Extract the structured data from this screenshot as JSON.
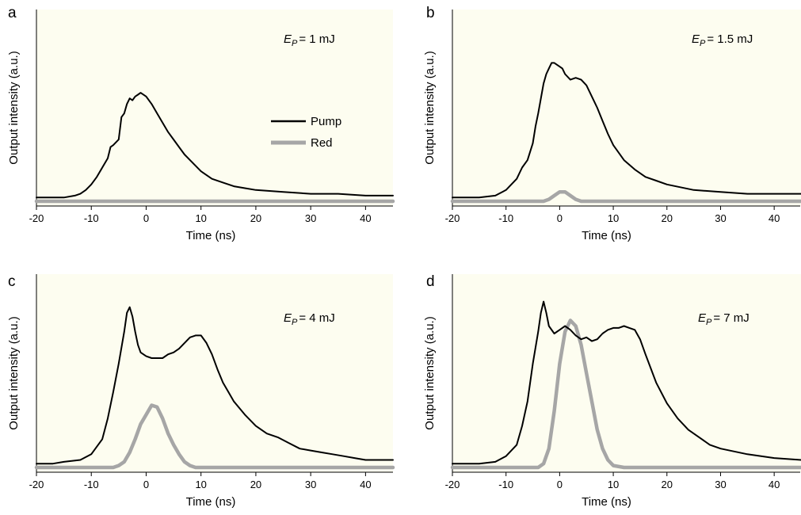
{
  "colors": {
    "plot_background": "#fdfdf0",
    "pump": "#000000",
    "red": "#a6a6a6"
  },
  "chart_data": [
    {
      "type": "line",
      "panel": "a",
      "xlabel": "Time (ns)",
      "ylabel": "Output intensity (a.u.)",
      "xlim": [
        -20,
        45
      ],
      "xticks": [
        -20,
        -10,
        0,
        10,
        20,
        30,
        40
      ],
      "ylim": [
        0,
        1
      ],
      "annotation": {
        "symbol": "E",
        "subscript": "P",
        "value": "= 1 mJ"
      },
      "legend": {
        "position": "center-right",
        "entries": [
          "Pump",
          "Red"
        ]
      },
      "series": [
        {
          "name": "Pump",
          "x": [
            -20,
            -15,
            -13,
            -12,
            -11,
            -10,
            -9,
            -8,
            -7,
            -6.5,
            -6,
            -5,
            -4.5,
            -4,
            -3.5,
            -3,
            -2.5,
            -2,
            -1.5,
            -1,
            0,
            1,
            2,
            3,
            4,
            5,
            6,
            7,
            8,
            9,
            10,
            12,
            14,
            16,
            18,
            20,
            25,
            30,
            35,
            40,
            45
          ],
          "y": [
            0.02,
            0.02,
            0.03,
            0.04,
            0.06,
            0.09,
            0.13,
            0.18,
            0.23,
            0.29,
            0.3,
            0.33,
            0.45,
            0.47,
            0.52,
            0.55,
            0.54,
            0.56,
            0.57,
            0.58,
            0.56,
            0.52,
            0.47,
            0.42,
            0.37,
            0.33,
            0.29,
            0.25,
            0.22,
            0.19,
            0.16,
            0.12,
            0.1,
            0.08,
            0.07,
            0.06,
            0.05,
            0.04,
            0.04,
            0.03,
            0.03
          ]
        },
        {
          "name": "Red",
          "x": [
            -20,
            45
          ],
          "y": [
            0.0,
            0.0
          ]
        }
      ]
    },
    {
      "type": "line",
      "panel": "b",
      "xlabel": "Time (ns)",
      "ylabel": "Output intensity (a.u.)",
      "xlim": [
        -20,
        45
      ],
      "xticks": [
        -20,
        -10,
        0,
        10,
        20,
        30,
        40
      ],
      "ylim": [
        0,
        1
      ],
      "annotation": {
        "symbol": "E",
        "subscript": "P",
        "value": "= 1.5 mJ"
      },
      "series": [
        {
          "name": "Pump",
          "x": [
            -20,
            -15,
            -12,
            -10,
            -8,
            -7,
            -6,
            -5,
            -4.5,
            -4,
            -3.5,
            -3,
            -2.5,
            -2,
            -1.5,
            -1,
            0,
            0.5,
            1,
            2,
            3,
            4,
            5,
            6,
            7,
            8,
            9,
            10,
            12,
            14,
            16,
            18,
            20,
            25,
            30,
            35,
            40,
            45
          ],
          "y": [
            0.02,
            0.02,
            0.03,
            0.06,
            0.12,
            0.18,
            0.22,
            0.31,
            0.4,
            0.47,
            0.55,
            0.63,
            0.68,
            0.71,
            0.74,
            0.74,
            0.72,
            0.71,
            0.68,
            0.65,
            0.66,
            0.65,
            0.62,
            0.56,
            0.5,
            0.43,
            0.36,
            0.3,
            0.22,
            0.17,
            0.13,
            0.11,
            0.09,
            0.06,
            0.05,
            0.04,
            0.04,
            0.04
          ]
        },
        {
          "name": "Red",
          "x": [
            -20,
            -3,
            -2,
            -1,
            0,
            1,
            2,
            3,
            4,
            45
          ],
          "y": [
            0.0,
            0.0,
            0.01,
            0.03,
            0.05,
            0.05,
            0.03,
            0.01,
            0.0,
            0.0
          ]
        }
      ]
    },
    {
      "type": "line",
      "panel": "c",
      "xlabel": "Time (ns)",
      "ylabel": "Output intensity (a.u.)",
      "xlim": [
        -20,
        45
      ],
      "xticks": [
        -20,
        -10,
        0,
        10,
        20,
        30,
        40
      ],
      "ylim": [
        0,
        1
      ],
      "annotation": {
        "symbol": "E",
        "subscript": "P",
        "value": "= 4 mJ"
      },
      "series": [
        {
          "name": "Pump",
          "x": [
            -20,
            -17,
            -15,
            -12,
            -10,
            -8,
            -7,
            -6,
            -5,
            -4,
            -3.5,
            -3,
            -2.5,
            -2,
            -1.5,
            -1,
            0,
            1,
            2,
            3,
            4,
            5,
            6,
            7,
            8,
            9,
            10,
            11,
            12,
            13,
            14,
            15,
            16,
            18,
            20,
            22,
            24,
            26,
            28,
            30,
            32,
            34,
            36,
            38,
            40,
            42,
            45
          ],
          "y": [
            0.02,
            0.02,
            0.03,
            0.04,
            0.07,
            0.15,
            0.26,
            0.4,
            0.55,
            0.72,
            0.82,
            0.85,
            0.8,
            0.72,
            0.65,
            0.61,
            0.59,
            0.58,
            0.58,
            0.58,
            0.6,
            0.61,
            0.63,
            0.66,
            0.69,
            0.7,
            0.7,
            0.66,
            0.6,
            0.52,
            0.45,
            0.4,
            0.35,
            0.28,
            0.22,
            0.18,
            0.16,
            0.13,
            0.1,
            0.09,
            0.08,
            0.07,
            0.06,
            0.05,
            0.04,
            0.04,
            0.04
          ]
        },
        {
          "name": "Red",
          "x": [
            -20,
            -6,
            -5,
            -4,
            -3,
            -2,
            -1,
            0,
            1,
            2,
            3,
            4,
            5,
            6,
            7,
            8,
            9,
            45
          ],
          "y": [
            0.0,
            0.0,
            0.01,
            0.03,
            0.08,
            0.15,
            0.23,
            0.28,
            0.33,
            0.32,
            0.26,
            0.18,
            0.12,
            0.07,
            0.03,
            0.01,
            0.0,
            0.0
          ]
        }
      ]
    },
    {
      "type": "line",
      "panel": "d",
      "xlabel": "Time (ns)",
      "ylabel": "Output intensity (a.u.)",
      "xlim": [
        -20,
        45
      ],
      "xticks": [
        -20,
        -10,
        0,
        10,
        20,
        30,
        40
      ],
      "ylim": [
        0,
        1
      ],
      "annotation": {
        "symbol": "E",
        "subscript": "P",
        "value": "= 7 mJ"
      },
      "series": [
        {
          "name": "Pump",
          "x": [
            -20,
            -15,
            -12,
            -10,
            -8,
            -7,
            -6,
            -5,
            -4,
            -3.5,
            -3,
            -2.5,
            -2,
            -1,
            0,
            1,
            2,
            3,
            4,
            5,
            6,
            7,
            8,
            9,
            10,
            11,
            12,
            13,
            14,
            15,
            16,
            18,
            20,
            22,
            24,
            26,
            28,
            30,
            35,
            40,
            45
          ],
          "y": [
            0.02,
            0.02,
            0.03,
            0.06,
            0.12,
            0.22,
            0.35,
            0.55,
            0.72,
            0.82,
            0.88,
            0.82,
            0.75,
            0.71,
            0.73,
            0.75,
            0.73,
            0.7,
            0.68,
            0.69,
            0.67,
            0.68,
            0.71,
            0.73,
            0.74,
            0.74,
            0.75,
            0.74,
            0.73,
            0.68,
            0.6,
            0.45,
            0.34,
            0.26,
            0.2,
            0.16,
            0.12,
            0.1,
            0.07,
            0.05,
            0.04
          ]
        },
        {
          "name": "Red",
          "x": [
            -20,
            -4,
            -3,
            -2,
            -1,
            0,
            1,
            2,
            3,
            4,
            5,
            6,
            7,
            8,
            9,
            10,
            12,
            14,
            45
          ],
          "y": [
            0.0,
            0.0,
            0.02,
            0.1,
            0.3,
            0.55,
            0.72,
            0.78,
            0.75,
            0.65,
            0.5,
            0.35,
            0.2,
            0.1,
            0.04,
            0.01,
            0.0,
            0.0,
            0.0
          ]
        }
      ]
    }
  ]
}
